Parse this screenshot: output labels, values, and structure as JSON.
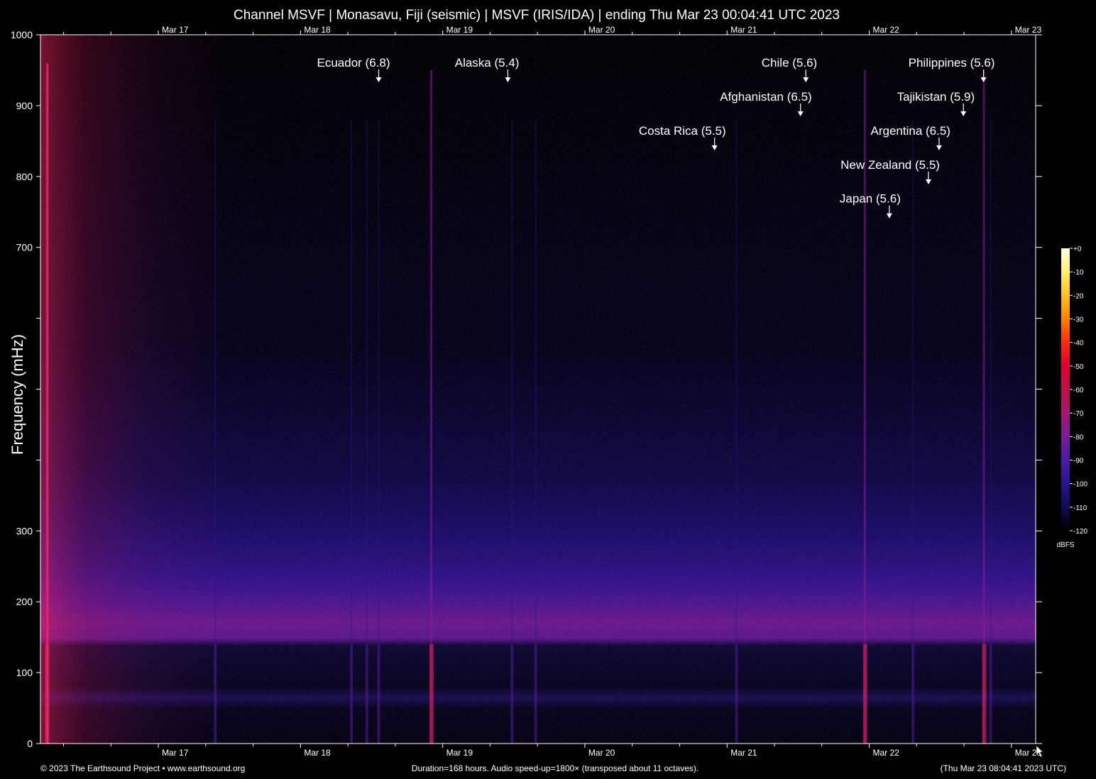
{
  "chart_data": {
    "type": "heatmap",
    "title": "Channel MSVF | Monasavu, Fiji (seismic) | MSVF (IRIS/IDA) | ending Thu Mar 23 00:04:41 UTC 2023",
    "ylabel": "Frequency (mHz)",
    "xlabel": "",
    "ylim": [
      0,
      1000
    ],
    "xlim_hours": [
      0,
      168
    ],
    "y_ticks": [
      {
        "value": 0,
        "label": "0"
      },
      {
        "value": 100,
        "label": "100"
      },
      {
        "value": 200,
        "label": "200"
      },
      {
        "value": 300,
        "label": "300"
      },
      {
        "value": 400,
        "label": ""
      },
      {
        "value": 500,
        "label": ""
      },
      {
        "value": 600,
        "label": ""
      },
      {
        "value": 700,
        "label": "700"
      },
      {
        "value": 800,
        "label": "800"
      },
      {
        "value": 900,
        "label": "900"
      },
      {
        "value": 1000,
        "label": "1000"
      }
    ],
    "x_day_ticks": [
      {
        "hour": 19.9,
        "label": "Mar 17"
      },
      {
        "hour": 43.9,
        "label": "Mar 18"
      },
      {
        "hour": 67.9,
        "label": "Mar 19"
      },
      {
        "hour": 91.9,
        "label": "Mar 20"
      },
      {
        "hour": 115.9,
        "label": "Mar 21"
      },
      {
        "hour": 139.9,
        "label": "Mar 22"
      },
      {
        "hour": 163.9,
        "label": "Mar 23"
      }
    ],
    "x_minor_tick_hours": [
      3.9,
      11.9,
      27.9,
      35.9,
      51.9,
      59.9,
      75.9,
      83.9,
      99.9,
      107.9,
      123.9,
      131.9,
      147.9,
      155.9
    ],
    "annotations": [
      {
        "label": "Ecuador (6.8)",
        "hour": 57.1,
        "freq": 940
      },
      {
        "label": "Alaska (5.4)",
        "hour": 78.9,
        "freq": 940
      },
      {
        "label": "Chile (5.6)",
        "hour": 129.2,
        "freq": 940
      },
      {
        "label": "Philippines (5.6)",
        "hour": 159.2,
        "freq": 940
      },
      {
        "label": "Afghanistan (6.5)",
        "hour": 128.3,
        "freq": 892
      },
      {
        "label": "Tajikistan (5.9)",
        "hour": 155.8,
        "freq": 892
      },
      {
        "label": "Costa Rica (5.5)",
        "hour": 113.8,
        "freq": 844
      },
      {
        "label": "Argentina (6.5)",
        "hour": 151.7,
        "freq": 844
      },
      {
        "label": "New Zealand (5.5)",
        "hour": 149.9,
        "freq": 796
      },
      {
        "label": "Japan (5.6)",
        "hour": 143.3,
        "freq": 748
      }
    ],
    "colorbar": {
      "unit": "dBFS",
      "range": [
        -120,
        0
      ],
      "ticks": [
        "+0",
        "-10",
        "-20",
        "-30",
        "-40",
        "-50",
        "-60",
        "-70",
        "-80",
        "-90",
        "-100",
        "-110",
        "-120"
      ],
      "colors": [
        "#ffffe8",
        "#fff06a",
        "#ffc21e",
        "#ff8000",
        "#ff2a14",
        "#e00032",
        "#c0104a",
        "#a01870",
        "#7a1c96",
        "#4c1aa6",
        "#261690",
        "#100a50",
        "#000000"
      ]
    },
    "noise_band": {
      "hum_band_mHz": [
        130,
        230
      ],
      "peak_mHz": 160,
      "low_band_mHz": [
        55,
        75
      ],
      "event_hours": [
        1,
        29.5,
        52.5,
        55.1,
        57.1,
        65.9,
        79.6,
        83.6,
        117.5,
        139.1,
        147.3,
        159.2,
        160.4
      ]
    }
  },
  "footer": {
    "left": "© 2023 The Earthsound Project • www.earthsound.org",
    "center": "Duration=168 hours. Audio speed-up=1800× (transposed about 11 octaves).",
    "right": "(Thu Mar 23 08:04:41 2023 UTC)"
  },
  "colors": {
    "background": "#000000",
    "text": "#ffffff",
    "axis": "#ffffff"
  }
}
